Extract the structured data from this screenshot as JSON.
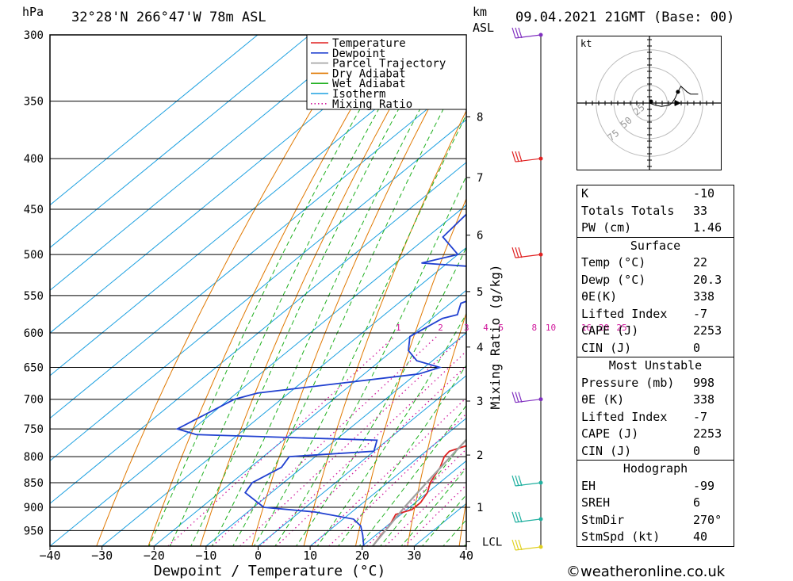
{
  "header": {
    "location": "32°28'N  266°47'W  78m  ASL",
    "datetime": "09.04.2021  21GMT  (Base: 00)",
    "pressure_unit": "hPa",
    "height_unit_1": "km",
    "height_unit_2": "ASL"
  },
  "chart_data": {
    "type": "line",
    "chart_kind": "skew-T log-P",
    "xlabel": "Dewpoint / Temperature (°C)",
    "ylabel_right": "Mixing Ratio (g/kg)",
    "xlim": [
      -40,
      40
    ],
    "ylim_hpa": [
      985,
      300
    ],
    "y_scale": "log",
    "x_ticks": [
      -40,
      -30,
      -20,
      -10,
      0,
      10,
      20,
      30,
      40
    ],
    "pressure_ticks": [
      300,
      350,
      400,
      450,
      500,
      550,
      600,
      650,
      700,
      750,
      800,
      850,
      900,
      950
    ],
    "height_ticks_km": [
      {
        "label": "1",
        "p": 900
      },
      {
        "label": "2",
        "p": 797
      },
      {
        "label": "3",
        "p": 703
      },
      {
        "label": "4",
        "p": 620
      },
      {
        "label": "5",
        "p": 545
      },
      {
        "label": "6",
        "p": 478
      },
      {
        "label": "7",
        "p": 418
      },
      {
        "label": "8",
        "p": 363
      }
    ],
    "lcl": {
      "label": "LCL",
      "p": 975
    },
    "mixing_ratio_labels": [
      "1",
      "2",
      "3",
      "4",
      "5",
      "8",
      "10",
      "16",
      "20",
      "25"
    ],
    "legend": [
      {
        "name": "Temperature",
        "color": "#e02020"
      },
      {
        "name": "Dewpoint",
        "color": "#2040d0"
      },
      {
        "name": "Parcel Trajectory",
        "color": "#a0a0a0"
      },
      {
        "name": "Dry Adiabat",
        "color": "#e07800"
      },
      {
        "name": "Wet Adiabat",
        "color": "#20b020"
      },
      {
        "name": "Isotherm",
        "color": "#1ca0e0"
      },
      {
        "name": "Mixing Ratio",
        "color": "#d0189c"
      }
    ],
    "legend_position": "top-right",
    "series": [
      {
        "name": "Temperature",
        "points": [
          [
            985,
            22
          ],
          [
            960,
            21
          ],
          [
            940,
            20.5
          ],
          [
            915,
            19
          ],
          [
            905,
            21
          ],
          [
            890,
            21
          ],
          [
            870,
            20
          ],
          [
            850,
            18.2
          ],
          [
            820,
            16.5
          ],
          [
            800,
            14.8
          ],
          [
            790,
            14.5
          ],
          [
            780,
            16.5
          ],
          [
            770,
            18.5
          ],
          [
            750,
            18
          ],
          [
            720,
            16.5
          ],
          [
            700,
            14.8
          ],
          [
            650,
            10.2
          ],
          [
            600,
            6
          ],
          [
            570,
            2.5
          ],
          [
            550,
            0.5
          ],
          [
            520,
            -3
          ],
          [
            505,
            -3
          ],
          [
            500,
            -4
          ],
          [
            480,
            -4.5
          ],
          [
            450,
            -7.5
          ],
          [
            430,
            -11
          ],
          [
            400,
            -15
          ],
          [
            350,
            -24
          ],
          [
            300,
            -35
          ]
        ]
      },
      {
        "name": "Dewpoint",
        "points": [
          [
            985,
            20.3
          ],
          [
            960,
            17.5
          ],
          [
            940,
            15
          ],
          [
            925,
            12
          ],
          [
            910,
            3
          ],
          [
            900,
            -8
          ],
          [
            870,
            -15
          ],
          [
            850,
            -16
          ],
          [
            820,
            -14
          ],
          [
            800,
            -15
          ],
          [
            790,
            0
          ],
          [
            770,
            -2
          ],
          [
            760,
            -38
          ],
          [
            750,
            -43
          ],
          [
            700,
            -39
          ],
          [
            690,
            -36
          ],
          [
            660,
            -9.5
          ],
          [
            650,
            -7
          ],
          [
            640,
            -13
          ],
          [
            625,
            -17
          ],
          [
            605,
            -20
          ],
          [
            580,
            -18
          ],
          [
            575,
            -16
          ],
          [
            560,
            -18
          ],
          [
            530,
            -11
          ],
          [
            520,
            -10
          ],
          [
            510,
            -35
          ],
          [
            500,
            -30
          ],
          [
            480,
            -37
          ],
          [
            450,
            -38
          ],
          [
            400,
            -40
          ],
          [
            350,
            -42
          ],
          [
            300,
            -45
          ]
        ]
      },
      {
        "name": "Parcel Trajectory",
        "points": [
          [
            985,
            22
          ],
          [
            900,
            19
          ],
          [
            850,
            17.5
          ],
          [
            800,
            16
          ],
          [
            750,
            14.5
          ],
          [
            700,
            13
          ],
          [
            650,
            10.5
          ],
          [
            600,
            7.5
          ],
          [
            550,
            3.5
          ],
          [
            500,
            -1
          ],
          [
            450,
            -7
          ],
          [
            400,
            -14
          ],
          [
            350,
            -22
          ],
          [
            300,
            -32
          ]
        ]
      }
    ]
  },
  "wind_barbs": [
    {
      "p": 300,
      "color": "#8030c0"
    },
    {
      "p": 400,
      "color": "#e02020"
    },
    {
      "p": 500,
      "color": "#e02020"
    },
    {
      "p": 700,
      "color": "#8030c0"
    },
    {
      "p": 850,
      "color": "#20b0a0"
    },
    {
      "p": 925,
      "color": "#20b0a0"
    },
    {
      "p": 1000,
      "color": "#e0d020"
    }
  ],
  "hodograph": {
    "unit": "kt",
    "ring_labels": [
      "25",
      "50",
      "75"
    ],
    "trace": [
      [
        0,
        0
      ],
      [
        8,
        -2
      ],
      [
        16,
        -3
      ],
      [
        26,
        -2
      ],
      [
        30,
        0
      ],
      [
        34,
        4
      ],
      [
        38,
        10
      ],
      [
        42,
        15
      ],
      [
        50,
        10
      ],
      [
        55,
        8
      ],
      [
        65,
        8
      ]
    ],
    "storm": {
      "u": 40,
      "v": 0
    }
  },
  "indices": [
    {
      "k": "K",
      "v": "-10"
    },
    {
      "k": "Totals Totals",
      "v": "33"
    },
    {
      "k": "PW (cm)",
      "v": "1.46"
    }
  ],
  "surface": {
    "title": "Surface",
    "rows": [
      {
        "k": "Temp (°C)",
        "v": "22"
      },
      {
        "k": "Dewp (°C)",
        "v": "20.3"
      },
      {
        "k": "θE(K)",
        "v": "338"
      },
      {
        "k": "Lifted Index",
        "v": "-7"
      },
      {
        "k": "CAPE (J)",
        "v": "2253"
      },
      {
        "k": "CIN (J)",
        "v": "0"
      }
    ]
  },
  "most_unstable": {
    "title": "Most Unstable",
    "rows": [
      {
        "k": "Pressure (mb)",
        "v": "998"
      },
      {
        "k": "θE (K)",
        "v": "338"
      },
      {
        "k": "Lifted Index",
        "v": "-7"
      },
      {
        "k": "CAPE (J)",
        "v": "2253"
      },
      {
        "k": "CIN (J)",
        "v": "0"
      }
    ]
  },
  "hodo_table": {
    "title": "Hodograph",
    "rows": [
      {
        "k": "EH",
        "v": "-99"
      },
      {
        "k": "SREH",
        "v": "6"
      },
      {
        "k": "StmDir",
        "v": "270°"
      },
      {
        "k": "StmSpd (kt)",
        "v": "40"
      }
    ]
  },
  "footer": "©weatheronline.co.uk"
}
